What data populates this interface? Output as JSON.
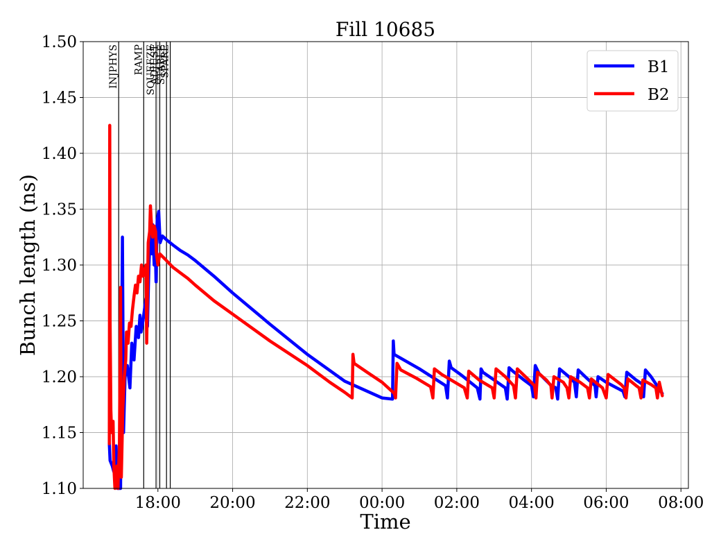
{
  "chart_data": {
    "type": "line",
    "title": "Fill 10685",
    "xlabel": "Time",
    "ylabel": "Bunch length (ns)",
    "ylim": [
      1.1,
      1.5
    ],
    "xlim_hours": [
      16.0,
      32.2
    ],
    "grid": true,
    "legend_placement": "top-right",
    "y_ticks": [
      "1.10",
      "1.15",
      "1.20",
      "1.25",
      "1.30",
      "1.35",
      "1.40",
      "1.45",
      "1.50"
    ],
    "x_ticks": [
      {
        "h": 18,
        "label": "18:00"
      },
      {
        "h": 20,
        "label": "20:00"
      },
      {
        "h": 22,
        "label": "22:00"
      },
      {
        "h": 24,
        "label": "00:00"
      },
      {
        "h": 26,
        "label": "02:00"
      },
      {
        "h": 28,
        "label": "04:00"
      },
      {
        "h": 30,
        "label": "06:00"
      },
      {
        "h": 32,
        "label": "08:00"
      }
    ],
    "phases": [
      {
        "label": "INJPHYS",
        "h": 16.95
      },
      {
        "label": "RAMP",
        "h": 17.62
      },
      {
        "label": "SQUEEZE",
        "h": 17.95
      },
      {
        "label": "ADJUST",
        "h": 18.05
      },
      {
        "label": "STABLE",
        "h": 18.23
      },
      {
        "label": "SPARE",
        "h": 18.33
      }
    ],
    "series": [
      {
        "name": "B1",
        "color": "#0000ff",
        "points": [
          [
            16.7,
            1.14
          ],
          [
            16.72,
            1.125
          ],
          [
            16.78,
            1.12
          ],
          [
            16.82,
            1.115
          ],
          [
            16.86,
            1.125
          ],
          [
            16.88,
            1.138
          ],
          [
            16.9,
            1.12
          ],
          [
            16.92,
            1.1
          ],
          [
            17.0,
            1.1
          ],
          [
            17.05,
            1.325
          ],
          [
            17.08,
            1.15
          ],
          [
            17.12,
            1.2
          ],
          [
            17.18,
            1.21
          ],
          [
            17.25,
            1.19
          ],
          [
            17.3,
            1.23
          ],
          [
            17.36,
            1.215
          ],
          [
            17.42,
            1.245
          ],
          [
            17.48,
            1.235
          ],
          [
            17.52,
            1.255
          ],
          [
            17.55,
            1.24
          ],
          [
            17.6,
            1.25
          ],
          [
            17.68,
            1.27
          ],
          [
            17.72,
            1.245
          ],
          [
            17.76,
            1.3
          ],
          [
            17.8,
            1.33
          ],
          [
            17.84,
            1.31
          ],
          [
            17.86,
            1.336
          ],
          [
            17.9,
            1.3
          ],
          [
            17.92,
            1.33
          ],
          [
            17.95,
            1.285
          ],
          [
            17.98,
            1.34
          ],
          [
            18.02,
            1.348
          ],
          [
            18.06,
            1.32
          ],
          [
            18.12,
            1.326
          ],
          [
            18.25,
            1.322
          ],
          [
            18.4,
            1.318
          ],
          [
            18.6,
            1.313
          ],
          [
            18.8,
            1.309
          ],
          [
            19.0,
            1.304
          ],
          [
            19.5,
            1.29
          ],
          [
            20.0,
            1.275
          ],
          [
            21.0,
            1.247
          ],
          [
            22.0,
            1.22
          ],
          [
            23.0,
            1.196
          ],
          [
            24.0,
            1.181
          ],
          [
            24.28,
            1.18
          ],
          [
            24.3,
            1.232
          ],
          [
            24.32,
            1.22
          ],
          [
            25.0,
            1.207
          ],
          [
            25.7,
            1.192
          ],
          [
            25.75,
            1.181
          ],
          [
            25.8,
            1.214
          ],
          [
            25.85,
            1.208
          ],
          [
            26.1,
            1.202
          ],
          [
            26.55,
            1.19
          ],
          [
            26.62,
            1.18
          ],
          [
            26.65,
            1.207
          ],
          [
            26.7,
            1.204
          ],
          [
            27.0,
            1.197
          ],
          [
            27.3,
            1.19
          ],
          [
            27.35,
            1.18
          ],
          [
            27.4,
            1.208
          ],
          [
            27.5,
            1.205
          ],
          [
            27.8,
            1.197
          ],
          [
            28.0,
            1.192
          ],
          [
            28.05,
            1.182
          ],
          [
            28.1,
            1.21
          ],
          [
            28.2,
            1.203
          ],
          [
            28.5,
            1.193
          ],
          [
            28.65,
            1.19
          ],
          [
            28.7,
            1.18
          ],
          [
            28.75,
            1.207
          ],
          [
            29.0,
            1.2
          ],
          [
            29.15,
            1.195
          ],
          [
            29.2,
            1.182
          ],
          [
            29.25,
            1.206
          ],
          [
            29.5,
            1.198
          ],
          [
            29.7,
            1.192
          ],
          [
            29.73,
            1.182
          ],
          [
            29.78,
            1.2
          ],
          [
            30.0,
            1.195
          ],
          [
            30.45,
            1.187
          ],
          [
            30.5,
            1.182
          ],
          [
            30.55,
            1.204
          ],
          [
            30.8,
            1.197
          ],
          [
            30.98,
            1.193
          ],
          [
            31.0,
            1.182
          ],
          [
            31.05,
            1.206
          ],
          [
            31.2,
            1.2
          ],
          [
            31.5,
            1.185
          ]
        ]
      },
      {
        "name": "B2",
        "color": "#ff0000",
        "points": [
          [
            16.7,
            1.14
          ],
          [
            16.71,
            1.425
          ],
          [
            16.72,
            1.25
          ],
          [
            16.74,
            1.17
          ],
          [
            16.76,
            1.15
          ],
          [
            16.8,
            1.16
          ],
          [
            16.82,
            1.12
          ],
          [
            16.85,
            1.1
          ],
          [
            16.9,
            1.12
          ],
          [
            16.93,
            1.1
          ],
          [
            16.97,
            1.14
          ],
          [
            17.0,
            1.28
          ],
          [
            17.02,
            1.11
          ],
          [
            17.06,
            1.17
          ],
          [
            17.1,
            1.2
          ],
          [
            17.14,
            1.215
          ],
          [
            17.16,
            1.24
          ],
          [
            17.2,
            1.23
          ],
          [
            17.24,
            1.248
          ],
          [
            17.28,
            1.245
          ],
          [
            17.32,
            1.26
          ],
          [
            17.36,
            1.272
          ],
          [
            17.4,
            1.282
          ],
          [
            17.44,
            1.275
          ],
          [
            17.48,
            1.29
          ],
          [
            17.52,
            1.285
          ],
          [
            17.56,
            1.3
          ],
          [
            17.6,
            1.29
          ],
          [
            17.64,
            1.295
          ],
          [
            17.68,
            1.3
          ],
          [
            17.7,
            1.23
          ],
          [
            17.74,
            1.32
          ],
          [
            17.78,
            1.33
          ],
          [
            17.8,
            1.353
          ],
          [
            17.82,
            1.34
          ],
          [
            17.86,
            1.325
          ],
          [
            17.9,
            1.335
          ],
          [
            17.94,
            1.33
          ],
          [
            17.96,
            1.31
          ],
          [
            18.0,
            1.3
          ],
          [
            18.05,
            1.31
          ],
          [
            18.2,
            1.305
          ],
          [
            18.4,
            1.298
          ],
          [
            18.6,
            1.293
          ],
          [
            18.8,
            1.288
          ],
          [
            19.0,
            1.282
          ],
          [
            19.5,
            1.268
          ],
          [
            20.0,
            1.256
          ],
          [
            21.0,
            1.232
          ],
          [
            22.0,
            1.21
          ],
          [
            22.6,
            1.195
          ],
          [
            23.0,
            1.186
          ],
          [
            23.2,
            1.181
          ],
          [
            23.22,
            1.22
          ],
          [
            23.25,
            1.212
          ],
          [
            23.6,
            1.204
          ],
          [
            24.0,
            1.195
          ],
          [
            24.33,
            1.185
          ],
          [
            24.36,
            1.181
          ],
          [
            24.4,
            1.212
          ],
          [
            24.5,
            1.206
          ],
          [
            24.9,
            1.199
          ],
          [
            25.3,
            1.191
          ],
          [
            25.36,
            1.181
          ],
          [
            25.4,
            1.207
          ],
          [
            25.6,
            1.202
          ],
          [
            25.9,
            1.196
          ],
          [
            26.2,
            1.19
          ],
          [
            26.28,
            1.181
          ],
          [
            26.32,
            1.205
          ],
          [
            26.6,
            1.197
          ],
          [
            26.95,
            1.19
          ],
          [
            27.0,
            1.181
          ],
          [
            27.05,
            1.207
          ],
          [
            27.3,
            1.2
          ],
          [
            27.52,
            1.192
          ],
          [
            27.57,
            1.181
          ],
          [
            27.62,
            1.207
          ],
          [
            27.9,
            1.198
          ],
          [
            28.08,
            1.192
          ],
          [
            28.12,
            1.181
          ],
          [
            28.16,
            1.204
          ],
          [
            28.4,
            1.197
          ],
          [
            28.52,
            1.192
          ],
          [
            28.55,
            1.181
          ],
          [
            28.6,
            1.2
          ],
          [
            28.85,
            1.195
          ],
          [
            28.95,
            1.19
          ],
          [
            29.0,
            1.181
          ],
          [
            29.05,
            1.2
          ],
          [
            29.3,
            1.195
          ],
          [
            29.5,
            1.19
          ],
          [
            29.55,
            1.181
          ],
          [
            29.6,
            1.198
          ],
          [
            29.9,
            1.19
          ],
          [
            30.0,
            1.181
          ],
          [
            30.05,
            1.202
          ],
          [
            30.4,
            1.193
          ],
          [
            30.48,
            1.19
          ],
          [
            30.53,
            1.181
          ],
          [
            30.58,
            1.198
          ],
          [
            30.8,
            1.192
          ],
          [
            30.88,
            1.19
          ],
          [
            30.93,
            1.181
          ],
          [
            30.98,
            1.197
          ],
          [
            31.2,
            1.193
          ],
          [
            31.33,
            1.19
          ],
          [
            31.37,
            1.181
          ],
          [
            31.42,
            1.195
          ],
          [
            31.5,
            1.183
          ]
        ]
      }
    ]
  }
}
